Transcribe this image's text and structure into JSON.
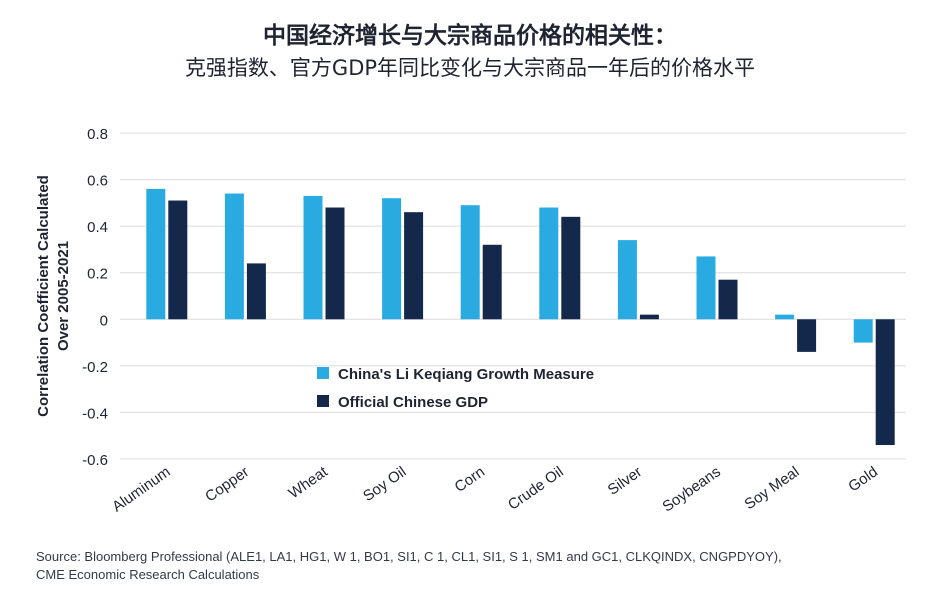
{
  "title": "中国经济增长与大宗商品价格的相关性：",
  "subtitle": "克强指数、官方GDP年同比变化与大宗商品一年后的价格水平",
  "source": [
    "Source: Bloomberg Professional (ALE1, LA1, HG1, W 1, BO1, SI1, C 1, CL1, SI1, S 1, SM1 and GC1, CLKQINDX, CNGPDYOY),",
    "CME Economic Research Calculations"
  ],
  "colors": {
    "li_keqiang": "#29abe2",
    "official_gdp": "#14284b",
    "grid": "#dcdcdc",
    "text": "#1f2433"
  },
  "chart_data": {
    "type": "bar",
    "categories": [
      "Aluminum",
      "Copper",
      "Wheat",
      "Soy Oil",
      "Corn",
      "Crude Oil",
      "Silver",
      "Soybeans",
      "Soy Meal",
      "Gold"
    ],
    "series": [
      {
        "name": "China's Li Keqiang Growth Measure",
        "values": [
          0.56,
          0.54,
          0.53,
          0.52,
          0.49,
          0.48,
          0.34,
          0.27,
          0.02,
          -0.1
        ]
      },
      {
        "name": "Official Chinese GDP",
        "values": [
          0.51,
          0.24,
          0.48,
          0.46,
          0.32,
          0.44,
          0.02,
          0.17,
          -0.14,
          -0.54
        ]
      }
    ],
    "ylabel": [
      "Correlation Coefficient Calculated",
      "Over 2005-2021"
    ],
    "ylim": [
      -0.6,
      0.8
    ],
    "yticks": [
      0.8,
      0.6,
      0.4,
      0.2,
      0,
      -0.2,
      -0.4,
      -0.6
    ],
    "ytick_labels": [
      "0.8",
      "0.6",
      "0.4",
      "0.2",
      "0",
      "-0.2",
      "-0.4",
      "-0.6"
    ],
    "grid": true,
    "legend_position": "center"
  }
}
